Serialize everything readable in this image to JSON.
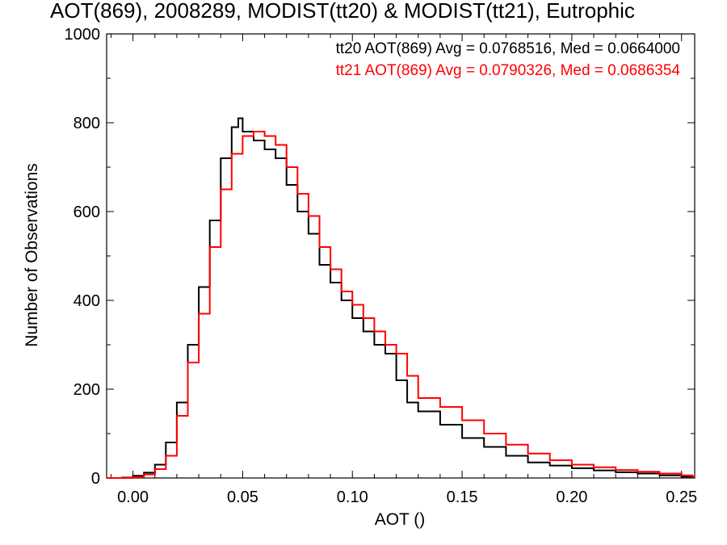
{
  "chart_data": {
    "type": "histogram-step",
    "title": "AOT(869), 2008289, MODIST(tt20) & MODIST(tt21), Eutrophic",
    "xlabel": "AOT ()",
    "ylabel": "Number of Observations",
    "xlim": [
      -0.012,
      0.256
    ],
    "ylim": [
      0,
      1000
    ],
    "x_ticks": [
      0.0,
      0.05,
      0.1,
      0.15,
      0.2,
      0.25
    ],
    "x_tick_labels": [
      "0.00",
      "0.05",
      "0.10",
      "0.15",
      "0.20",
      "0.25"
    ],
    "y_ticks": [
      0,
      200,
      400,
      600,
      800,
      1000
    ],
    "y_tick_labels": [
      "0",
      "200",
      "400",
      "600",
      "800",
      "1000"
    ],
    "grid": false,
    "legend_position": "top-right",
    "series": [
      {
        "name": "tt20",
        "color": "#000000",
        "legend": "tt20 AOT(869) Avg = 0.0768516, Med = 0.0664000",
        "x": [
          -0.01,
          -0.005,
          0.0,
          0.005,
          0.01,
          0.015,
          0.02,
          0.025,
          0.03,
          0.035,
          0.04,
          0.045,
          0.048,
          0.05,
          0.055,
          0.06,
          0.065,
          0.07,
          0.075,
          0.08,
          0.085,
          0.09,
          0.095,
          0.1,
          0.105,
          0.11,
          0.115,
          0.12,
          0.125,
          0.13,
          0.14,
          0.15,
          0.16,
          0.17,
          0.18,
          0.19,
          0.2,
          0.21,
          0.22,
          0.23,
          0.24,
          0.25,
          0.255
        ],
        "values": [
          0,
          1,
          5,
          12,
          30,
          80,
          170,
          300,
          430,
          580,
          720,
          790,
          810,
          780,
          760,
          740,
          720,
          660,
          600,
          550,
          480,
          440,
          400,
          360,
          330,
          300,
          280,
          220,
          170,
          150,
          120,
          90,
          70,
          50,
          35,
          28,
          22,
          17,
          13,
          10,
          6,
          3,
          2
        ]
      },
      {
        "name": "tt21",
        "color": "#ff0000",
        "legend": "tt21 AOT(869) Avg = 0.0790326, Med = 0.0686354",
        "x": [
          -0.01,
          -0.005,
          0.0,
          0.005,
          0.01,
          0.015,
          0.02,
          0.025,
          0.03,
          0.035,
          0.04,
          0.045,
          0.05,
          0.055,
          0.06,
          0.065,
          0.07,
          0.075,
          0.08,
          0.085,
          0.09,
          0.095,
          0.1,
          0.105,
          0.11,
          0.115,
          0.12,
          0.125,
          0.13,
          0.14,
          0.15,
          0.16,
          0.17,
          0.18,
          0.19,
          0.2,
          0.21,
          0.22,
          0.23,
          0.24,
          0.25,
          0.255
        ],
        "values": [
          0,
          0,
          2,
          8,
          20,
          50,
          140,
          260,
          370,
          520,
          650,
          730,
          770,
          780,
          770,
          750,
          700,
          640,
          590,
          520,
          470,
          420,
          390,
          360,
          330,
          300,
          280,
          230,
          180,
          160,
          130,
          100,
          75,
          55,
          40,
          30,
          24,
          18,
          14,
          10,
          6,
          3
        ]
      }
    ]
  }
}
